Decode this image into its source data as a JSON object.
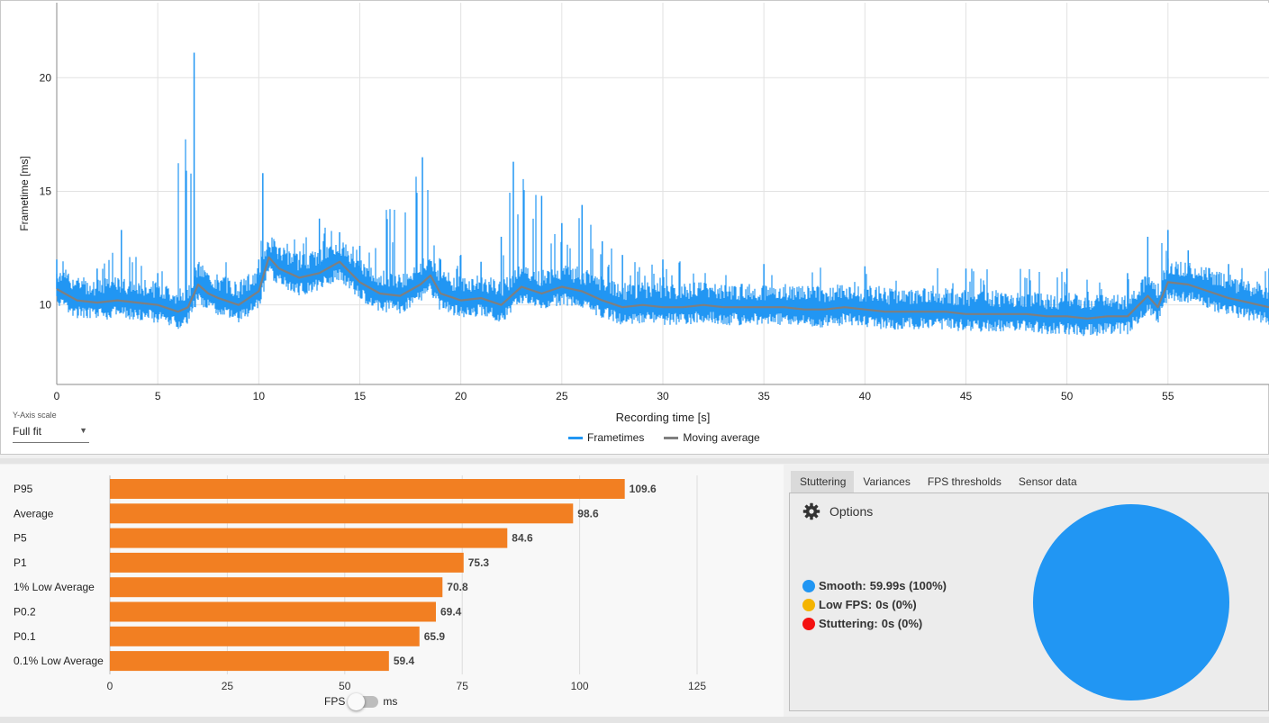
{
  "frametime_chart": {
    "ylabel": "Frametime [ms]",
    "xlabel": "Recording time [s]",
    "x_ticks": [
      "0",
      "5",
      "10",
      "15",
      "20",
      "25",
      "30",
      "35",
      "40",
      "45",
      "50",
      "55"
    ],
    "y_ticks": [
      "10",
      "15",
      "20"
    ],
    "legend": {
      "frametimes": "Frametimes",
      "moving_average": "Moving average"
    },
    "colors": {
      "frametimes": "#2196f3",
      "moving_average": "#7f7f7f"
    }
  },
  "yaxis_scale": {
    "label": "Y-Axis scale",
    "value": "Full fit"
  },
  "stat_chart": {
    "x_ticks": [
      "0",
      "25",
      "50",
      "75",
      "100",
      "125"
    ],
    "bar_color": "#f27f22",
    "unit_toggle": {
      "left": "FPS",
      "right": "ms"
    }
  },
  "tabs": [
    "Stuttering",
    "Variances",
    "FPS thresholds",
    "Sensor data"
  ],
  "active_tab": "Stuttering",
  "options_label": "Options",
  "stuttering": {
    "smooth": {
      "label": "Smooth:",
      "value": "59.99s (100%)",
      "color": "#2196f3"
    },
    "low_fps": {
      "label": "Low FPS:",
      "value": "0s (0%)",
      "color": "#f4b400"
    },
    "stuttering": {
      "label": "Stuttering:",
      "value": "0s (0%)",
      "color": "#f41111"
    }
  },
  "chart_data": [
    {
      "type": "line",
      "title": "",
      "xlabel": "Recording time [s]",
      "ylabel": "Frametime [ms]",
      "xlim": [
        0,
        60
      ],
      "ylim": [
        6.5,
        23.3
      ],
      "grid": true,
      "legend": "bottom-center",
      "series": [
        {
          "name": "Moving average",
          "x": [
            0,
            1,
            2,
            3,
            4,
            5,
            6,
            6.5,
            7,
            7.5,
            8,
            9,
            10,
            10.5,
            11,
            12,
            13,
            14,
            15,
            16,
            17,
            18,
            18.5,
            19,
            20,
            21,
            22,
            23,
            24,
            25,
            26,
            27,
            28,
            29,
            30,
            31,
            32,
            33,
            34,
            35,
            36,
            37,
            38,
            39,
            40,
            41,
            42,
            43,
            44,
            45,
            46,
            47,
            48,
            49,
            50,
            51,
            52,
            53,
            54,
            54.5,
            55,
            56,
            57,
            58,
            59,
            60
          ],
          "values": [
            10.7,
            10.2,
            10.1,
            10.2,
            10.1,
            10.0,
            9.7,
            9.9,
            10.9,
            10.5,
            10.3,
            10.0,
            10.6,
            12.1,
            11.6,
            11.2,
            11.4,
            11.9,
            11.0,
            10.5,
            10.4,
            10.9,
            11.3,
            10.5,
            10.2,
            10.3,
            10.0,
            10.8,
            10.5,
            10.8,
            10.6,
            10.2,
            9.9,
            10.0,
            9.9,
            9.9,
            10.0,
            9.9,
            9.9,
            9.9,
            9.9,
            9.8,
            9.8,
            9.9,
            9.8,
            9.7,
            9.7,
            9.7,
            9.7,
            9.6,
            9.6,
            9.6,
            9.6,
            9.5,
            9.5,
            9.4,
            9.5,
            9.5,
            10.4,
            9.9,
            11.0,
            10.9,
            10.6,
            10.3,
            10.1,
            9.9
          ]
        },
        {
          "name": "Frametimes",
          "x": [
            0,
            2,
            3.2,
            5,
            6.8,
            7,
            10,
            10.2,
            11,
            13,
            14,
            15,
            18.1,
            19,
            20,
            21,
            22,
            22.6,
            24,
            25,
            26,
            27,
            28,
            30,
            35,
            40,
            45,
            50,
            53,
            54,
            55,
            56,
            58,
            60
          ],
          "values": [
            12.0,
            11.6,
            13.3,
            11.4,
            21.1,
            11.8,
            12.0,
            15.8,
            12.5,
            13.8,
            13.2,
            12.6,
            16.5,
            12.0,
            12.2,
            11.9,
            13.0,
            16.3,
            14.8,
            13.6,
            14.4,
            12.8,
            12.2,
            12.0,
            11.8,
            11.7,
            11.6,
            11.6,
            11.4,
            13.0,
            13.3,
            12.4,
            11.8,
            11.6
          ]
        }
      ]
    },
    {
      "type": "bar",
      "title": "",
      "xlabel": "",
      "ylabel": "",
      "xlim": [
        0,
        125
      ],
      "categories": [
        "P95",
        "Average",
        "P5",
        "P1",
        "1% Low Average",
        "P0.2",
        "P0.1",
        "0.1% Low Average"
      ],
      "values": [
        109.6,
        98.6,
        84.6,
        75.3,
        70.8,
        69.4,
        65.9,
        59.4
      ],
      "labels": [
        "109.6",
        "98.6",
        "84.6",
        "75.3",
        "70.8",
        "69.4",
        "65.9",
        "59.4"
      ]
    },
    {
      "type": "pie",
      "title": "",
      "categories": [
        "Smooth",
        "Low FPS",
        "Stuttering"
      ],
      "values": [
        100,
        0,
        0
      ]
    }
  ]
}
